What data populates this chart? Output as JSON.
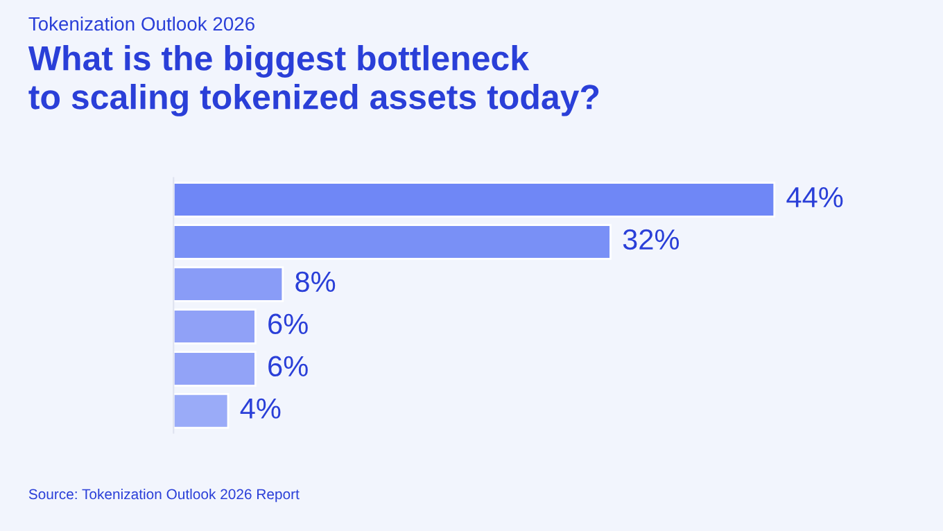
{
  "chart_data": {
    "type": "bar",
    "orientation": "horizontal",
    "subtitle": "Tokenization Outlook 2026",
    "title": "What is the biggest bottleneck\nto scaling tokenized assets today?",
    "categories": [
      null,
      null,
      null,
      null,
      null,
      null
    ],
    "values": [
      44,
      32,
      8,
      6,
      6,
      4
    ],
    "value_labels": [
      "44%",
      "32%",
      "8%",
      "6%",
      "6%",
      "4%"
    ],
    "colors": [
      "#6f87f6",
      "#7990f6",
      "#899cf7",
      "#90a1f7",
      "#92a3f7",
      "#9aabf8"
    ],
    "annotations": [
      "Source: Tokenization Outlook 2026 Report"
    ],
    "legend": false,
    "grid": false
  }
}
